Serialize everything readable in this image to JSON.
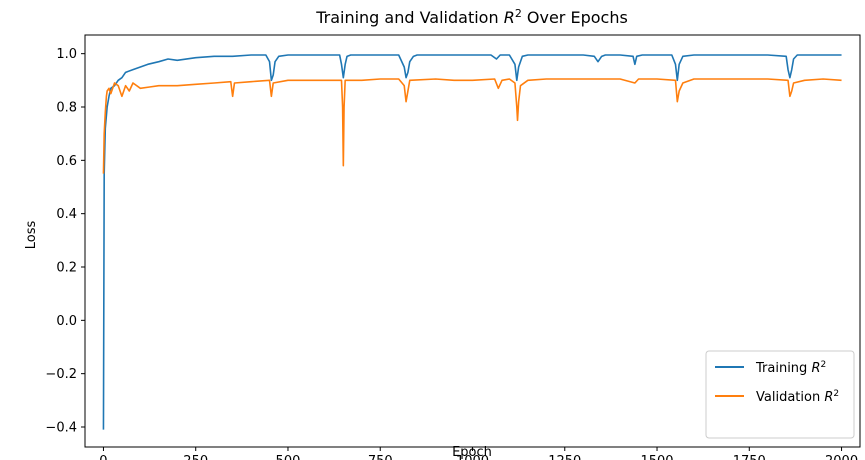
{
  "chart_data": {
    "type": "line",
    "title": "Training and Validation R² Over Epochs",
    "title_parts": {
      "before": "Training and Validation ",
      "symbol": "R",
      "superscript": "2",
      "after": " Over Epochs"
    },
    "xlabel": "Epoch",
    "ylabel": "Loss",
    "xlim": [
      -50,
      2050
    ],
    "ylim": [
      -0.475,
      1.07
    ],
    "xticks": [
      0,
      250,
      500,
      750,
      1000,
      1250,
      1500,
      1750,
      2000
    ],
    "xtick_labels": [
      "0",
      "250",
      "500",
      "750",
      "1000",
      "1250",
      "1500",
      "1750",
      "2000"
    ],
    "yticks": [
      -0.4,
      -0.2,
      0.0,
      0.2,
      0.4,
      0.6,
      0.8,
      1.0
    ],
    "ytick_labels": [
      "−0.4",
      "−0.2",
      "0.0",
      "0.2",
      "0.4",
      "0.6",
      "0.8",
      "1.0"
    ],
    "grid": false,
    "legend_position": "lower-right",
    "series": [
      {
        "name": "Training R²",
        "name_parts": {
          "before": "Training ",
          "symbol": "R",
          "superscript": "2"
        },
        "color": "#1f77b4",
        "x": [
          0,
          2,
          5,
          10,
          15,
          20,
          30,
          40,
          50,
          60,
          80,
          100,
          120,
          150,
          175,
          200,
          250,
          300,
          350,
          400,
          440,
          450,
          455,
          460,
          465,
          475,
          500,
          550,
          600,
          640,
          645,
          650,
          655,
          660,
          670,
          700,
          750,
          800,
          815,
          820,
          825,
          830,
          840,
          850,
          900,
          950,
          1000,
          1050,
          1065,
          1075,
          1100,
          1115,
          1120,
          1125,
          1135,
          1150,
          1200,
          1250,
          1300,
          1330,
          1340,
          1350,
          1360,
          1400,
          1435,
          1440,
          1445,
          1460,
          1500,
          1540,
          1550,
          1555,
          1560,
          1570,
          1600,
          1650,
          1700,
          1750,
          1800,
          1850,
          1855,
          1860,
          1865,
          1870,
          1880,
          1900,
          1950,
          2000
        ],
        "y": [
          -0.41,
          0.55,
          0.72,
          0.8,
          0.84,
          0.87,
          0.88,
          0.9,
          0.91,
          0.93,
          0.94,
          0.95,
          0.96,
          0.97,
          0.98,
          0.975,
          0.985,
          0.99,
          0.99,
          0.995,
          0.995,
          0.97,
          0.9,
          0.92,
          0.97,
          0.99,
          0.995,
          0.995,
          0.995,
          0.995,
          0.96,
          0.91,
          0.96,
          0.99,
          0.995,
          0.995,
          0.995,
          0.995,
          0.95,
          0.91,
          0.93,
          0.97,
          0.99,
          0.995,
          0.995,
          0.995,
          0.995,
          0.995,
          0.98,
          0.995,
          0.995,
          0.96,
          0.9,
          0.95,
          0.99,
          0.995,
          0.995,
          0.995,
          0.995,
          0.99,
          0.97,
          0.99,
          0.995,
          0.995,
          0.99,
          0.96,
          0.99,
          0.995,
          0.995,
          0.995,
          0.96,
          0.9,
          0.96,
          0.99,
          0.995,
          0.995,
          0.995,
          0.995,
          0.995,
          0.99,
          0.94,
          0.91,
          0.94,
          0.98,
          0.995,
          0.995,
          0.995,
          0.995
        ]
      },
      {
        "name": "Validation R²",
        "name_parts": {
          "before": "Validation ",
          "symbol": "R",
          "superscript": "2"
        },
        "color": "#ff7f0e",
        "x": [
          0,
          2,
          5,
          8,
          10,
          15,
          20,
          30,
          40,
          50,
          60,
          70,
          80,
          100,
          125,
          150,
          175,
          200,
          250,
          300,
          345,
          350,
          355,
          400,
          450,
          455,
          460,
          500,
          550,
          600,
          645,
          648,
          650,
          652,
          655,
          700,
          750,
          800,
          815,
          820,
          825,
          830,
          900,
          950,
          1000,
          1060,
          1070,
          1080,
          1100,
          1115,
          1120,
          1122,
          1125,
          1130,
          1150,
          1200,
          1250,
          1300,
          1400,
          1440,
          1450,
          1500,
          1550,
          1555,
          1560,
          1570,
          1600,
          1700,
          1800,
          1855,
          1860,
          1865,
          1870,
          1900,
          1950,
          2000
        ],
        "y": [
          0.55,
          0.7,
          0.78,
          0.84,
          0.86,
          0.87,
          0.85,
          0.89,
          0.88,
          0.84,
          0.88,
          0.86,
          0.89,
          0.87,
          0.875,
          0.88,
          0.88,
          0.88,
          0.885,
          0.89,
          0.895,
          0.84,
          0.89,
          0.895,
          0.9,
          0.84,
          0.89,
          0.9,
          0.9,
          0.9,
          0.9,
          0.8,
          0.58,
          0.8,
          0.9,
          0.9,
          0.905,
          0.905,
          0.88,
          0.82,
          0.86,
          0.9,
          0.905,
          0.9,
          0.9,
          0.905,
          0.87,
          0.9,
          0.905,
          0.89,
          0.8,
          0.75,
          0.82,
          0.88,
          0.9,
          0.905,
          0.905,
          0.905,
          0.905,
          0.89,
          0.905,
          0.905,
          0.9,
          0.82,
          0.86,
          0.89,
          0.905,
          0.905,
          0.905,
          0.9,
          0.84,
          0.86,
          0.89,
          0.9,
          0.905,
          0.9
        ]
      }
    ]
  }
}
